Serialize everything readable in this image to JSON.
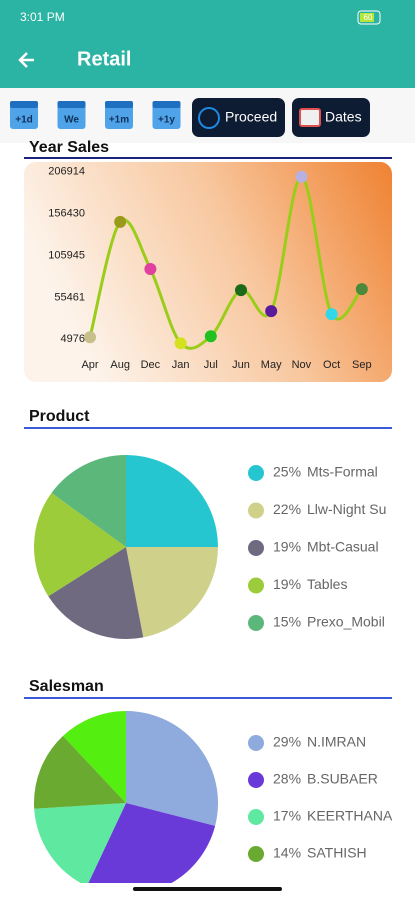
{
  "status_bar": {
    "time": "3:01 PM",
    "battery": "60"
  },
  "header": {
    "title": "Retail"
  },
  "toolbar": {
    "quick_ranges": [
      "+1d",
      "We",
      "+1m",
      "+1y"
    ],
    "buttons": [
      "Proceed",
      "Dates"
    ]
  },
  "chart_data": [
    {
      "type": "line",
      "title": "Year Sales",
      "categories": [
        "Apr",
        "Aug",
        "Dec",
        "Jan",
        "Jul",
        "Jun",
        "May",
        "Nov",
        "Oct",
        "Sep"
      ],
      "values": [
        7400,
        146400,
        89600,
        140,
        8600,
        64200,
        38800,
        200800,
        35200,
        65400
      ],
      "color": "#9acd1a",
      "point_colors": [
        "#c8c08a",
        "#9a9a1a",
        "#e040a0",
        "#d4e020",
        "#20c020",
        "#1a6a1a",
        "#5a1a9a",
        "#b8b0e0",
        "#30d8e8",
        "#4a8a3a"
      ],
      "ylim": [
        -8000,
        221000
      ],
      "yticks": [
        206914,
        156430,
        105945,
        55461,
        4976
      ]
    },
    {
      "type": "pie",
      "title": "Product",
      "categories": [
        "Mts-Formal",
        "Llw-Night Su",
        "Mbt-Casual",
        "Tables",
        "Prexo_Mobil"
      ],
      "values": [
        25,
        22,
        19,
        19,
        15
      ],
      "value_labels": [
        "25%",
        "22%",
        "19%",
        "19%",
        "15%"
      ],
      "colors": [
        "#26c6d0",
        "#cfd18a",
        "#6f6a80",
        "#9ccc3a",
        "#5cb87a"
      ]
    },
    {
      "type": "pie",
      "title": "Salesman",
      "categories": [
        "N.IMRAN",
        "B.SUBAER",
        "KEERTHANA",
        "SATHISH",
        null
      ],
      "values": [
        29,
        28,
        17,
        14,
        12
      ],
      "value_labels": [
        "29%",
        "28%",
        "17%",
        "14%",
        null
      ],
      "colors": [
        "#8faadc",
        "#6a3ad8",
        "#5ee8a0",
        "#6aaa30",
        "#55ee11"
      ]
    }
  ]
}
